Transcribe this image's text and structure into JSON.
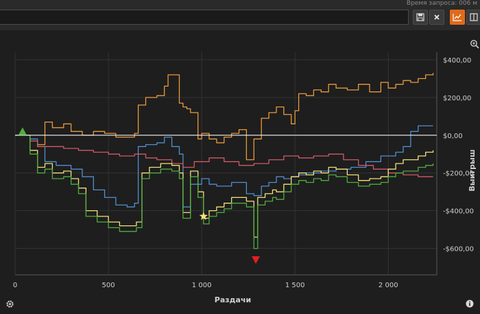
{
  "header": {
    "request_time": "Время запроса: 006 м",
    "query_value": "",
    "buttons": {
      "save_icon": "save-icon",
      "close_icon": "close-icon",
      "graph_icon": "line-graph-icon",
      "layout_icon": "split-panel-icon"
    },
    "accent_color": "#e06a1b"
  },
  "chart_data": {
    "type": "line",
    "title": "",
    "xlabel": "Раздачи",
    "ylabel": "Выигрыш",
    "xlim": [
      0,
      2260
    ],
    "ylim": [
      -740,
      440
    ],
    "x_ticks": [
      0,
      500,
      1000,
      1500,
      2000
    ],
    "x_tick_labels": [
      "0",
      "500",
      "1 000",
      "1 500",
      "2 000"
    ],
    "y_ticks": [
      400,
      200,
      0,
      -200,
      -400,
      -600
    ],
    "y_tick_labels": [
      "$400,00",
      "$200,00",
      "$0,00",
      "-$200,00",
      "-$400,00",
      "-$600,00"
    ],
    "grid": true,
    "zero_line": true,
    "series": [
      {
        "color": "#e89a3c",
        "x": [
          0,
          40,
          80,
          120,
          160,
          200,
          260,
          300,
          360,
          420,
          480,
          540,
          600,
          640,
          660,
          700,
          760,
          800,
          820,
          880,
          900,
          920,
          940,
          980,
          1000,
          1040,
          1080,
          1120,
          1160,
          1200,
          1240,
          1280,
          1320,
          1360,
          1380,
          1400,
          1440,
          1480,
          1500,
          1520,
          1560,
          1600,
          1640,
          1680,
          1720,
          1780,
          1840,
          1900,
          1960,
          2000,
          2040,
          2080,
          2120,
          2160,
          2200,
          2240
        ],
        "y": [
          0,
          0,
          -30,
          -50,
          70,
          40,
          60,
          20,
          0,
          20,
          10,
          -10,
          -10,
          10,
          160,
          200,
          210,
          260,
          320,
          170,
          150,
          140,
          120,
          -20,
          10,
          -20,
          -40,
          -10,
          10,
          30,
          -130,
          -20,
          90,
          120,
          120,
          150,
          110,
          60,
          130,
          220,
          210,
          240,
          230,
          270,
          250,
          240,
          270,
          230,
          280,
          250,
          270,
          290,
          280,
          300,
          320,
          330
        ]
      },
      {
        "color": "#4f8fcf",
        "x": [
          0,
          40,
          80,
          120,
          160,
          220,
          300,
          360,
          420,
          480,
          540,
          600,
          640,
          660,
          700,
          760,
          800,
          840,
          880,
          900,
          940,
          1000,
          1040,
          1080,
          1160,
          1240,
          1280,
          1320,
          1360,
          1400,
          1440,
          1480,
          1520,
          1560,
          1640,
          1720,
          1800,
          1880,
          1960,
          2040,
          2080,
          2120,
          2160,
          2200,
          2240
        ],
        "y": [
          0,
          0,
          -20,
          -60,
          -140,
          -160,
          -180,
          -220,
          -290,
          -330,
          -370,
          -380,
          -360,
          -60,
          -50,
          -40,
          -10,
          -60,
          -100,
          -380,
          -260,
          -230,
          -260,
          -270,
          -250,
          -310,
          -320,
          -270,
          -250,
          -220,
          -230,
          -220,
          -210,
          -200,
          -190,
          -180,
          -170,
          -140,
          -110,
          -90,
          -60,
          20,
          50,
          50,
          50
        ]
      },
      {
        "color": "#d05a66",
        "x": [
          0,
          40,
          80,
          120,
          180,
          260,
          340,
          420,
          500,
          560,
          640,
          700,
          760,
          840,
          900,
          960,
          1040,
          1120,
          1200,
          1280,
          1360,
          1440,
          1520,
          1600,
          1680,
          1760,
          1840,
          1920,
          2000,
          2080,
          2160,
          2240
        ],
        "y": [
          0,
          0,
          -30,
          -60,
          -60,
          -70,
          -80,
          -90,
          -100,
          -110,
          -100,
          -120,
          -130,
          -150,
          -170,
          -140,
          -120,
          -140,
          -160,
          -150,
          -130,
          -110,
          -120,
          -110,
          -100,
          -130,
          -160,
          -180,
          -200,
          -210,
          -220,
          -220
        ]
      },
      {
        "color": "#f2e27a",
        "x": [
          0,
          40,
          80,
          120,
          160,
          200,
          260,
          300,
          340,
          380,
          440,
          500,
          560,
          620,
          650,
          680,
          720,
          780,
          840,
          880,
          900,
          940,
          980,
          1010,
          1040,
          1080,
          1120,
          1160,
          1200,
          1240,
          1280,
          1300,
          1340,
          1380,
          1400,
          1440,
          1480,
          1520,
          1560,
          1600,
          1640,
          1680,
          1720,
          1780,
          1840,
          1900,
          1960,
          2000,
          2040,
          2080,
          2120,
          2160,
          2200,
          2240
        ],
        "y": [
          0,
          0,
          -80,
          -170,
          -150,
          -200,
          -190,
          -230,
          -280,
          -400,
          -430,
          -460,
          -480,
          -480,
          -460,
          -200,
          -170,
          -150,
          -160,
          -200,
          -410,
          -190,
          -300,
          -440,
          -400,
          -380,
          -360,
          -330,
          -330,
          -350,
          -540,
          -330,
          -310,
          -290,
          -300,
          -260,
          -220,
          -200,
          -210,
          -190,
          -200,
          -170,
          -180,
          -210,
          -240,
          -230,
          -220,
          -180,
          -150,
          -130,
          -130,
          -110,
          -90,
          -80
        ]
      },
      {
        "color": "#4fae3f",
        "x": [
          0,
          40,
          80,
          120,
          160,
          200,
          260,
          300,
          340,
          380,
          440,
          500,
          560,
          620,
          650,
          680,
          720,
          780,
          840,
          880,
          900,
          940,
          980,
          1010,
          1040,
          1080,
          1120,
          1160,
          1200,
          1240,
          1280,
          1300,
          1340,
          1380,
          1400,
          1440,
          1480,
          1520,
          1560,
          1600,
          1640,
          1680,
          1720,
          1780,
          1840,
          1900,
          1960,
          2000,
          2040,
          2080,
          2120,
          2160,
          2200,
          2240
        ],
        "y": [
          0,
          0,
          -100,
          -200,
          -180,
          -230,
          -220,
          -260,
          -310,
          -430,
          -460,
          -490,
          -510,
          -510,
          -490,
          -230,
          -200,
          -180,
          -190,
          -230,
          -440,
          -220,
          -330,
          -470,
          -430,
          -410,
          -390,
          -360,
          -360,
          -380,
          -600,
          -370,
          -350,
          -330,
          -340,
          -300,
          -260,
          -240,
          -250,
          -230,
          -240,
          -210,
          -220,
          -250,
          -270,
          -260,
          -250,
          -220,
          -200,
          -190,
          -190,
          -170,
          -160,
          -150
        ]
      }
    ],
    "markers": [
      {
        "type": "triangle-up",
        "color": "#4fae3f",
        "x": 40,
        "y": 20
      },
      {
        "type": "star",
        "color": "#f2e27a",
        "x": 1010,
        "y": -430
      },
      {
        "type": "triangle-down",
        "color": "#e02020",
        "x": 1290,
        "y": -660
      }
    ],
    "axis_color": "#cfcfcf",
    "grid_color": "#333333",
    "plot_bg": "#1e1e1e",
    "footer_icons": {
      "left": "gear-icon",
      "right": "info-icon",
      "zoom": "zoom-icon"
    }
  }
}
